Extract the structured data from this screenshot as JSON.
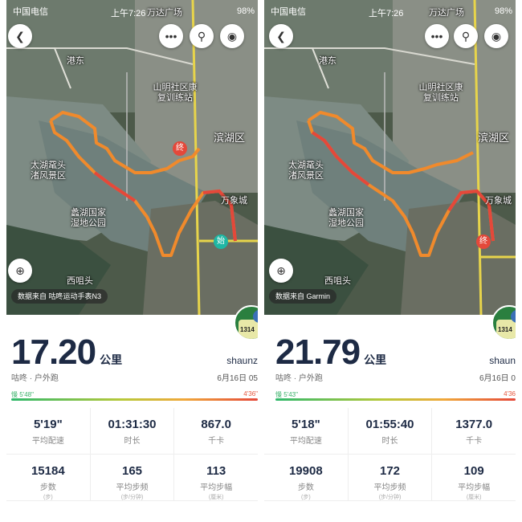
{
  "status": {
    "carrier": "中国电信",
    "time": "上午7:26",
    "battery": "98%"
  },
  "map_labels": {
    "landmark_mall": "万达广场",
    "port": "港东",
    "rehab": "山明社区康复训练站",
    "district": "滨湖区",
    "scenic_a": "太湖鼋头渚风景区",
    "park": "蠡湖国家湿地公园",
    "mall2": "万象城",
    "xichang": "西咀头"
  },
  "left": {
    "data_source": "数据来自 咕咚运动手表N3",
    "distance": "17.20",
    "distance_unit": "公里",
    "username": "shaunz",
    "activity": "咕咚 · 户外跑",
    "date": "6月16日 05",
    "pace_slow": "慢 5'48\"",
    "pace_fast": "4'36\"",
    "stats": [
      {
        "value": "5'19\"",
        "label": "平均配速",
        "unit": ""
      },
      {
        "value": "01:31:30",
        "label": "时长",
        "unit": ""
      },
      {
        "value": "867.0",
        "label": "千卡",
        "unit": ""
      },
      {
        "value": "15184",
        "label": "步数",
        "unit": "(步)"
      },
      {
        "value": "165",
        "label": "平均步频",
        "unit": "(步/分钟)"
      },
      {
        "value": "113",
        "label": "平均步幅",
        "unit": "(厘米)"
      }
    ],
    "start_marker": "始",
    "end_marker": "终",
    "avatar_bib": "1314"
  },
  "right": {
    "data_source": "数据来自 Garmin",
    "distance": "21.79",
    "distance_unit": "公里",
    "username": "shaun",
    "activity": "咕咚 · 户外跑",
    "date": "6月16日 0",
    "pace_slow": "慢 5'43\"",
    "pace_fast": "4'36",
    "stats": [
      {
        "value": "5'18\"",
        "label": "平均配速",
        "unit": ""
      },
      {
        "value": "01:55:40",
        "label": "时长",
        "unit": ""
      },
      {
        "value": "1377.0",
        "label": "千卡",
        "unit": ""
      },
      {
        "value": "19908",
        "label": "步数",
        "unit": "(步)"
      },
      {
        "value": "172",
        "label": "平均步频",
        "unit": "(步/分钟)"
      },
      {
        "value": "109",
        "label": "平均步幅",
        "unit": "(厘米)"
      }
    ],
    "end_marker": "终",
    "avatar_bib": "1314"
  },
  "colors": {
    "route": "#f08a2c",
    "route_red": "#e4483a",
    "title": "#1d2a44",
    "start": "#1fb7a4",
    "end": "#e4483a"
  }
}
